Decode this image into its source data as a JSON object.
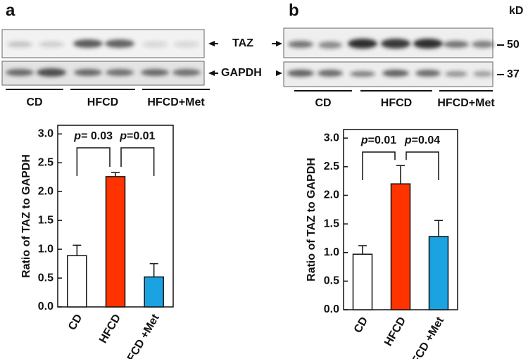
{
  "panels": [
    {
      "label": "a",
      "blot": {
        "bands": [
          "TAZ",
          "GAPDH"
        ],
        "groups": [
          "CD",
          "HFCD",
          "HFCD+Met"
        ]
      }
    },
    {
      "label": "b",
      "blot": {
        "markers_title": "kD",
        "markers": [
          50,
          37
        ],
        "groups": [
          "CD",
          "HFCD",
          "HFCD+Met"
        ]
      }
    }
  ],
  "chart_data": [
    {
      "type": "bar",
      "ylabel": "Ratio of TAZ to GAPDH",
      "categories": [
        "CD",
        "HFCD",
        "HFCD +Met"
      ],
      "series": [
        {
          "values": [
            0.89,
            2.26,
            0.52
          ],
          "errors": [
            0.18,
            0.07,
            0.23
          ],
          "colors": [
            "#ffffff",
            "#ff3300",
            "#1aa3e0"
          ]
        }
      ],
      "ylim": [
        0,
        3.15
      ],
      "yticks": [
        {
          "value": 0,
          "label": "0.0"
        },
        {
          "value": 0.5,
          "label": "0.5"
        },
        {
          "value": 1,
          "label": "1.0"
        },
        {
          "value": 1.5,
          "label": "1.5"
        },
        {
          "value": 2,
          "label": "2.0"
        },
        {
          "value": 2.5,
          "label": "2.5"
        },
        {
          "value": 3,
          "label": "3.0"
        }
      ],
      "annotations": [
        {
          "symbol": "p",
          "text": "= 0.03"
        },
        {
          "symbol": "p",
          "text": "=0.01"
        }
      ]
    },
    {
      "type": "bar",
      "ylabel": "Ratio of TAZ to GAPDH",
      "categories": [
        "CD",
        "HFCD",
        "HFCD +Met"
      ],
      "series": [
        {
          "values": [
            0.97,
            2.2,
            1.28
          ],
          "errors": [
            0.15,
            0.32,
            0.28
          ],
          "colors": [
            "#ffffff",
            "#ff3300",
            "#1aa3e0"
          ]
        }
      ],
      "ylim": [
        0,
        3.15
      ],
      "yticks": [
        {
          "value": 0,
          "label": "0.0"
        },
        {
          "value": 0.5,
          "label": "0.5"
        },
        {
          "value": 1,
          "label": "1.0"
        },
        {
          "value": 1.5,
          "label": "1.5"
        },
        {
          "value": 2,
          "label": "2.0"
        },
        {
          "value": 2.5,
          "label": "2.5"
        },
        {
          "value": 3,
          "label": "3.0"
        }
      ],
      "annotations": [
        {
          "symbol": "p",
          "text": "=0.01"
        },
        {
          "symbol": "p",
          "text": "=0.04"
        }
      ]
    }
  ]
}
